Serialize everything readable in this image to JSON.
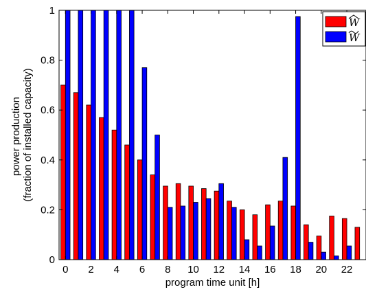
{
  "chart_data": {
    "type": "bar",
    "xlabel": "program time unit [h]",
    "ylabel_lines": [
      "power production",
      "(fraction of installed capacity)"
    ],
    "ylim": [
      0,
      1
    ],
    "yticks": [
      0,
      0.2,
      0.4,
      0.6,
      0.8,
      1
    ],
    "ytick_labels": [
      "0",
      "0.2",
      "0.4",
      "0.6",
      "0.8",
      "1"
    ],
    "xlim": [
      -0.5,
      23.5
    ],
    "xticks": [
      0,
      2,
      4,
      6,
      8,
      10,
      12,
      14,
      16,
      18,
      20,
      22
    ],
    "xtick_labels": [
      "0",
      "2",
      "4",
      "6",
      "8",
      "10",
      "12",
      "14",
      "16",
      "18",
      "20",
      "22"
    ],
    "legend_position": "top-right",
    "x": [
      0,
      1,
      2,
      3,
      4,
      5,
      6,
      7,
      8,
      9,
      10,
      11,
      12,
      13,
      14,
      15,
      16,
      17,
      18,
      19,
      20,
      21,
      22,
      23
    ],
    "series": [
      {
        "name": "W",
        "accent": "hat",
        "color": "#ff0000",
        "values": [
          0.7,
          0.67,
          0.62,
          0.57,
          0.52,
          0.46,
          0.4,
          0.34,
          0.295,
          0.305,
          0.295,
          0.285,
          0.275,
          0.235,
          0.2,
          0.18,
          0.22,
          0.235,
          0.215,
          0.14,
          0.095,
          0.175,
          0.165,
          0.13
        ]
      },
      {
        "name": "W",
        "accent": "tilde",
        "color": "#0000ff",
        "values": [
          1.0,
          1.0,
          1.0,
          1.0,
          1.0,
          1.0,
          0.77,
          0.5,
          0.21,
          0.215,
          0.23,
          0.245,
          0.305,
          0.21,
          0.08,
          0.055,
          0.135,
          0.41,
          0.975,
          0.07,
          0.03,
          0.015,
          0.055,
          0.0
        ]
      }
    ]
  }
}
